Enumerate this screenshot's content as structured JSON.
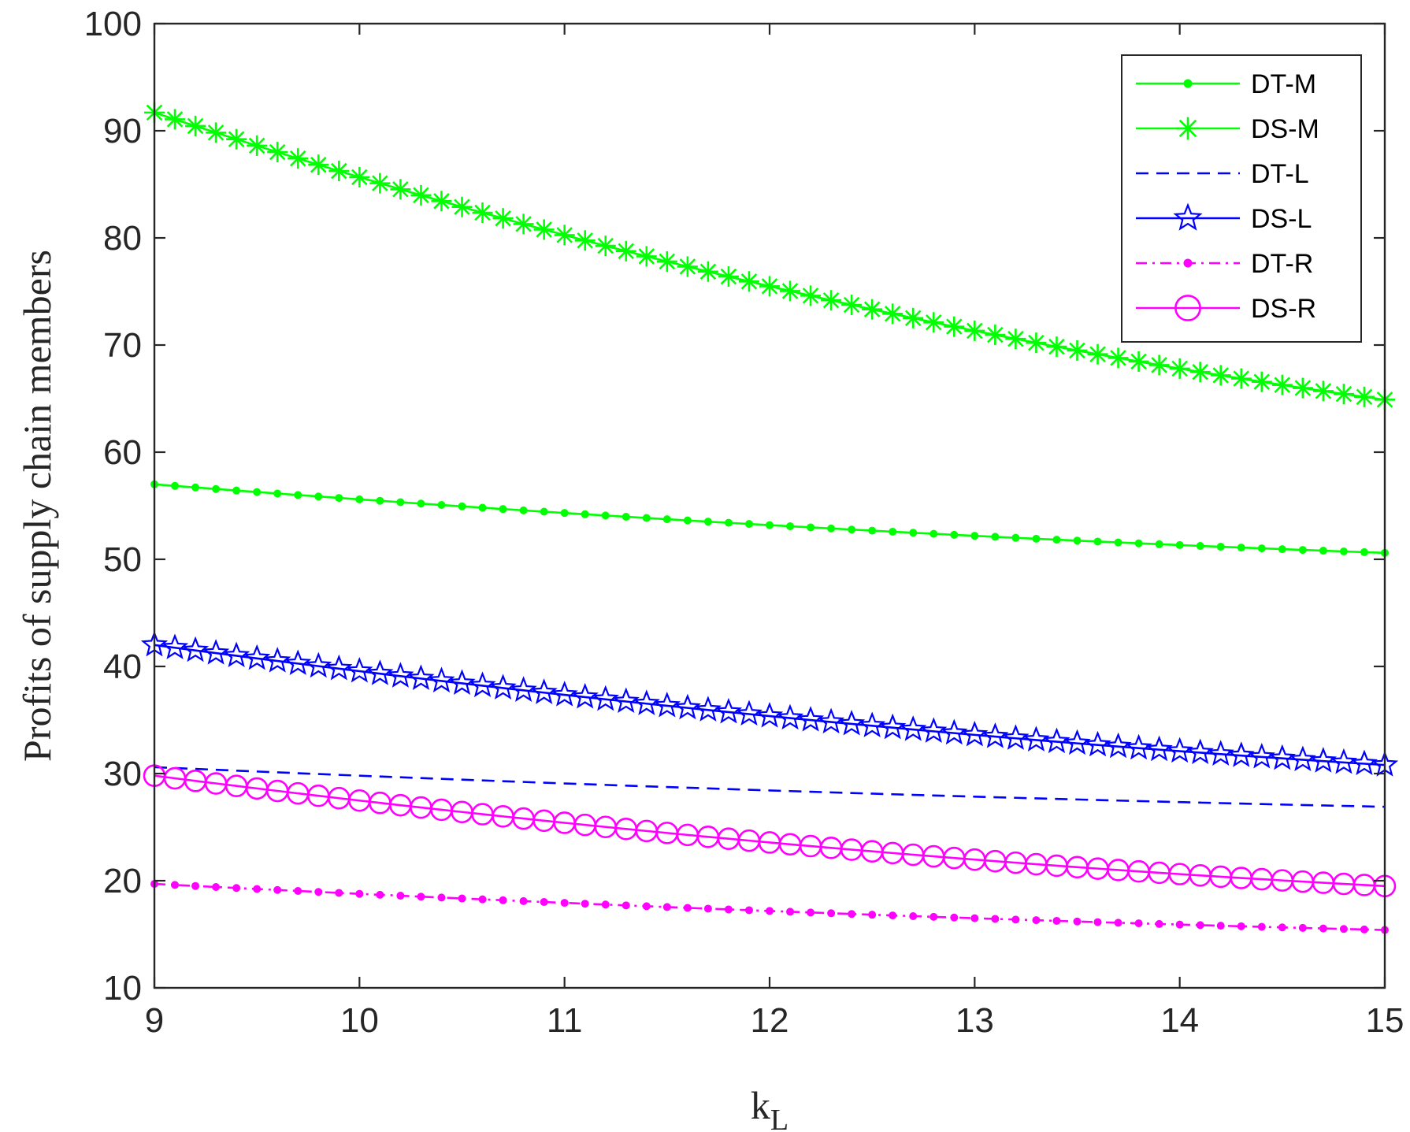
{
  "chart_data": {
    "type": "line",
    "title": "",
    "xlabel": "k",
    "xlabel_subscript": "L",
    "ylabel": "Profits of supply chain members",
    "xlim": [
      9,
      15
    ],
    "ylim": [
      10,
      100
    ],
    "xticks": [
      "9",
      "10",
      "11",
      "12",
      "13",
      "14",
      "15"
    ],
    "yticks": [
      "10",
      "20",
      "30",
      "40",
      "50",
      "60",
      "70",
      "80",
      "90",
      "100"
    ],
    "grid": false,
    "legend_position": "top-right",
    "x_range": {
      "start": 9,
      "end": 15,
      "step": 0.1
    },
    "series": [
      {
        "name": "DT-M",
        "start": 57.0,
        "end": 50.6,
        "color": "#00ff00",
        "line": "solid",
        "marker": "dot",
        "curvature": 0.38
      },
      {
        "name": "DS-M",
        "start": 91.7,
        "end": 64.9,
        "color": "#00ff00",
        "line": "solid",
        "marker": "asterisk",
        "curvature": 0.42
      },
      {
        "name": "DT-L",
        "start": 30.6,
        "end": 26.9,
        "color": "#0000ff",
        "line": "dashed",
        "marker": "none",
        "curvature": 0.35
      },
      {
        "name": "DS-L",
        "start": 42.0,
        "end": 30.8,
        "color": "#0000ff",
        "line": "solid",
        "marker": "star",
        "curvature": 0.37
      },
      {
        "name": "DT-R",
        "start": 19.7,
        "end": 15.4,
        "color": "#ff00ff",
        "line": "dashdot",
        "marker": "dot",
        "curvature": 0.35
      },
      {
        "name": "DS-R",
        "start": 29.8,
        "end": 19.5,
        "color": "#ff00ff",
        "line": "solid",
        "marker": "circle",
        "curvature": 0.42
      }
    ]
  }
}
